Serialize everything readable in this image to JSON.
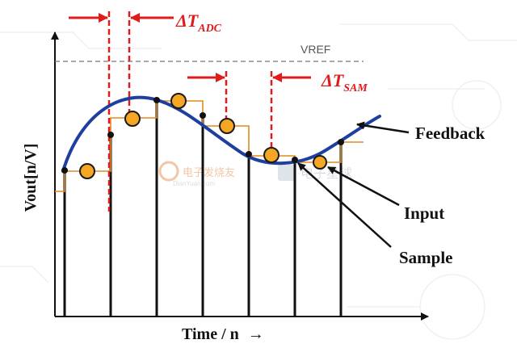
{
  "diagram": {
    "y_axis_label": "Vout[n/V]",
    "x_axis_label": "Time / n",
    "x_axis_arrow": "→",
    "vref_label": "VREF",
    "delta_t_adc": {
      "delta": "ΔT",
      "sub": "ADC"
    },
    "delta_t_sam": {
      "delta": "ΔT",
      "sub": "SAM"
    },
    "legend": {
      "feedback": "Feedback",
      "input": "Input",
      "sample": "Sample"
    },
    "watermark": {
      "left_text": "电子发烧友",
      "left_sub": "DianYuan.com",
      "right_text": "电子星球"
    }
  },
  "colors": {
    "curve": "#1f3f9e",
    "marker_fill": "#f5a623",
    "marker_stroke": "#1a1a1a",
    "step": "#e08a1f",
    "red": "#e01b1b",
    "vref_line": "#777777"
  }
}
